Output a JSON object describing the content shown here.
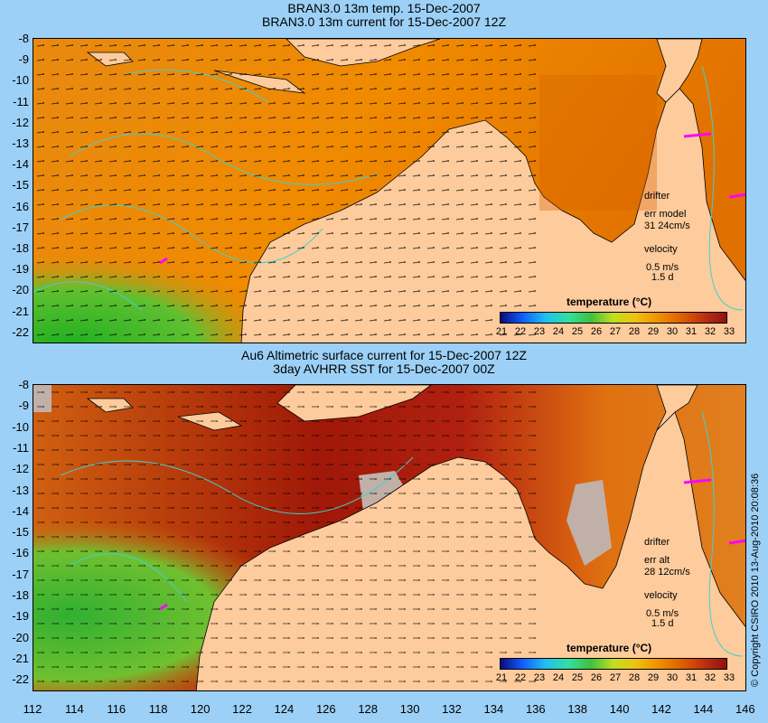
{
  "panel1": {
    "title_line1": "BRAN3.0 13m temp. 15-Dec-2007",
    "title_line2": "BRAN3.0 13m current for 15-Dec-2007 12Z",
    "legend": {
      "drifter": "drifter",
      "err": "err model",
      "err_values": "31 24cm/s",
      "velocity": "velocity",
      "velocity_scale": "0.5 m/s",
      "duration": "1.5 d"
    },
    "colorbar_title": "temperature (°C)"
  },
  "panel2": {
    "title_line1": "Au6 Altimetric surface current for 15-Dec-2007 12Z",
    "title_line2": "3day AVHRR SST for 15-Dec-2007 00Z",
    "legend": {
      "drifter": "drifter",
      "err": "err alt",
      "err_values": "28 12cm/s",
      "velocity": "velocity",
      "velocity_scale": "0.5 m/s",
      "duration": "1.5 d"
    },
    "colorbar_title": "temperature (°C)"
  },
  "colorbar_ticks": [
    "21",
    "22",
    "23",
    "24",
    "25",
    "26",
    "27",
    "28",
    "29",
    "30",
    "31",
    "32",
    "33"
  ],
  "y_ticks": [
    "-8",
    "-9",
    "-10",
    "-11",
    "-12",
    "-13",
    "-14",
    "-15",
    "-16",
    "-17",
    "-18",
    "-19",
    "-20",
    "-21",
    "-22"
  ],
  "x_ticks": [
    "112",
    "114",
    "116",
    "118",
    "120",
    "122",
    "124",
    "126",
    "128",
    "130",
    "132",
    "134",
    "136",
    "138",
    "140",
    "142",
    "144",
    "146"
  ],
  "copyright": "© Copyright CSIRO 2010  13-Aug-2010 20:08:36",
  "colors": {
    "background": "#9cd0f6",
    "land": "#fdcb9c",
    "contour": "#40d0d0",
    "drifter": "#ff00ff"
  }
}
